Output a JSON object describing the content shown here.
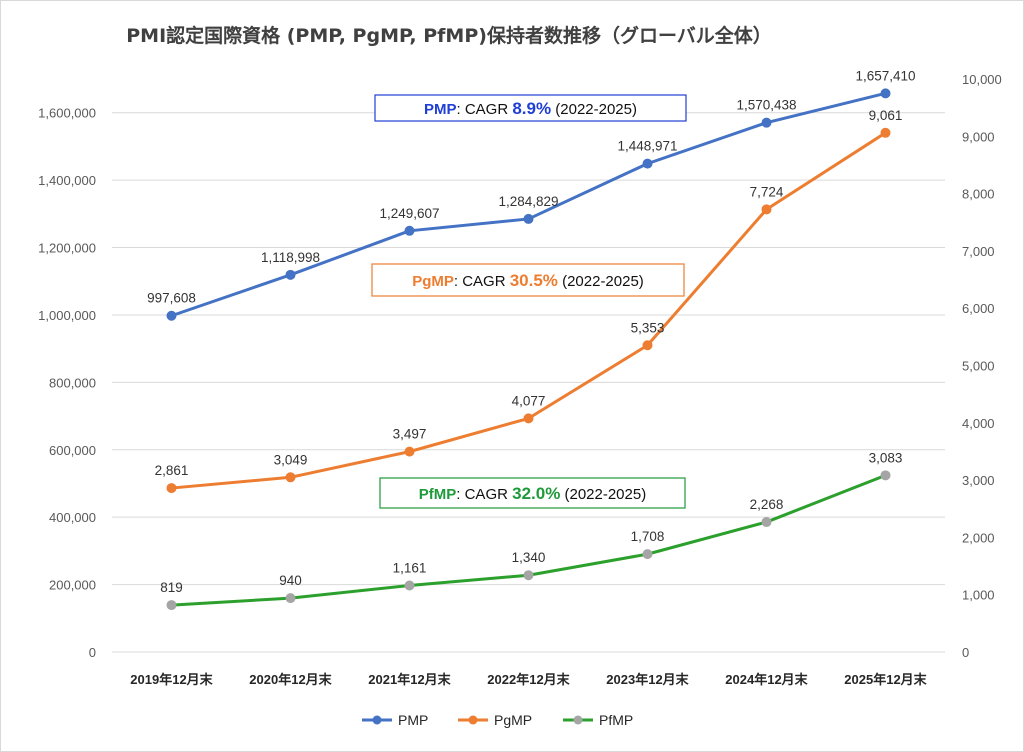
{
  "chart_data": {
    "type": "line",
    "title": "PMI認定国際資格 (PMP, PgMP, PfMP)保持者数推移（グローバル全体）",
    "categories": [
      "2019年12月末",
      "2020年12月末",
      "2021年12月末",
      "2022年12月末",
      "2023年12月末",
      "2024年12月末",
      "2025年12月末"
    ],
    "y_left": {
      "range": [
        0,
        1700000
      ],
      "ticks": [
        0,
        200000,
        400000,
        600000,
        800000,
        1000000,
        1200000,
        1400000,
        1600000
      ],
      "tick_labels": [
        "0",
        "200,000",
        "400,000",
        "600,000",
        "800,000",
        "1,000,000",
        "1,200,000",
        "1,400,000",
        "1,600,000"
      ]
    },
    "y_right": {
      "range": [
        0,
        10000
      ],
      "ticks": [
        0,
        1000,
        2000,
        3000,
        4000,
        5000,
        6000,
        7000,
        8000,
        9000,
        10000
      ],
      "tick_labels": [
        "0",
        "1,000",
        "2,000",
        "3,000",
        "4,000",
        "5,000",
        "6,000",
        "7,000",
        "8,000",
        "9,000",
        "10,000"
      ]
    },
    "grid": true,
    "legend_position": "bottom",
    "series": [
      {
        "name": "PMP",
        "axis": "left",
        "color": "#4472c4",
        "values": [
          997608,
          1118998,
          1249607,
          1284829,
          1448971,
          1570438,
          1657410
        ],
        "labels": [
          "997,608",
          "1,118,998",
          "1,249,607",
          "1,284,829",
          "1,448,971",
          "1,570,438",
          "1,657,410"
        ]
      },
      {
        "name": "PgMP",
        "axis": "right",
        "color": "#ed7d31",
        "values": [
          2861,
          3049,
          3497,
          4077,
          5353,
          7724,
          9061
        ],
        "labels": [
          "2,861",
          "3,049",
          "3,497",
          "4,077",
          "5,353",
          "7,724",
          "9,061"
        ]
      },
      {
        "name": "PfMP",
        "axis": "right",
        "color": "#2ca02c",
        "marker_color": "#a5a5a5",
        "values": [
          819,
          940,
          1161,
          1340,
          1708,
          2268,
          3083
        ],
        "labels": [
          "819",
          "940",
          "1,161",
          "1,340",
          "1,708",
          "2,268",
          "3,083"
        ]
      }
    ],
    "annotations": [
      {
        "name": "PMP",
        "name_color": "#1f3fd6",
        "mid": ": CAGR ",
        "value": "8.9%",
        "value_color": "#1f3fd6",
        "tail": " (2022-2025)",
        "border": "#1f3fd6"
      },
      {
        "name": "PgMP",
        "name_color": "#ed7d31",
        "mid": ": CAGR ",
        "value": "30.5%",
        "value_color": "#ed7d31",
        "tail": " (2022-2025)",
        "border": "#ed7d31"
      },
      {
        "name": "PfMP",
        "name_color": "#1f9a3a",
        "mid": ": CAGR ",
        "value": "32.0%",
        "value_color": "#1f9a3a",
        "tail": " (2022-2025)",
        "border": "#1f9a3a"
      }
    ]
  }
}
